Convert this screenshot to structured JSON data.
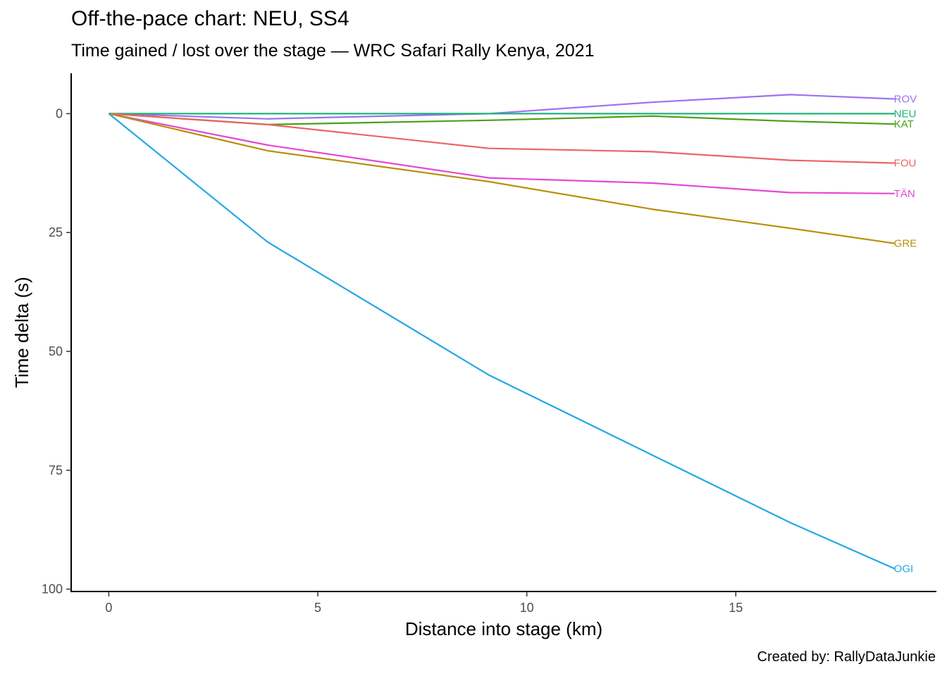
{
  "chart_data": {
    "type": "line",
    "title": "Off-the-pace chart: NEU, SS4",
    "subtitle": "Time gained / lost over the stage — WRC Safari Rally Kenya, 2021",
    "caption": "Created by: RallyDataJunkie",
    "xlabel": "Distance into stage (km)",
    "ylabel": "Time delta (s)",
    "xlim": [
      -0.9,
      19.8
    ],
    "ylim": [
      -8.5,
      100.5
    ],
    "y_reversed": true,
    "x_ticks": [
      0,
      5,
      10,
      15
    ],
    "x_tick_labels": [
      "0",
      "5",
      "10",
      "15"
    ],
    "y_ticks": [
      0,
      25,
      50,
      75,
      100
    ],
    "y_tick_labels": [
      "0",
      "25",
      "50",
      "75",
      "100"
    ],
    "x": [
      0,
      3.8,
      9.1,
      13.0,
      16.3,
      18.8
    ],
    "series": [
      {
        "name": "ROV",
        "color": "#9b72f2",
        "values": [
          0,
          1.1,
          0,
          -2.4,
          -4.0,
          -3.1
        ]
      },
      {
        "name": "NEU",
        "color": "#1fb37a",
        "values": [
          0,
          0,
          0,
          0,
          0,
          0
        ]
      },
      {
        "name": "KAT",
        "color": "#4aa01a",
        "values": [
          0,
          2.3,
          1.4,
          0.5,
          1.6,
          2.2
        ]
      },
      {
        "name": "FOU",
        "color": "#ec6464",
        "values": [
          0,
          2.3,
          7.3,
          8.0,
          9.8,
          10.4
        ]
      },
      {
        "name": "TÄN",
        "color": "#e547d4",
        "values": [
          0,
          6.6,
          13.5,
          14.6,
          16.6,
          16.8
        ]
      },
      {
        "name": "GRE",
        "color": "#b8900e",
        "values": [
          0,
          7.8,
          14.3,
          20.1,
          24.1,
          27.3
        ]
      },
      {
        "name": "OGI",
        "color": "#22a9e3",
        "values": [
          0,
          27.0,
          55.0,
          71.8,
          86.0,
          95.7
        ]
      }
    ]
  }
}
